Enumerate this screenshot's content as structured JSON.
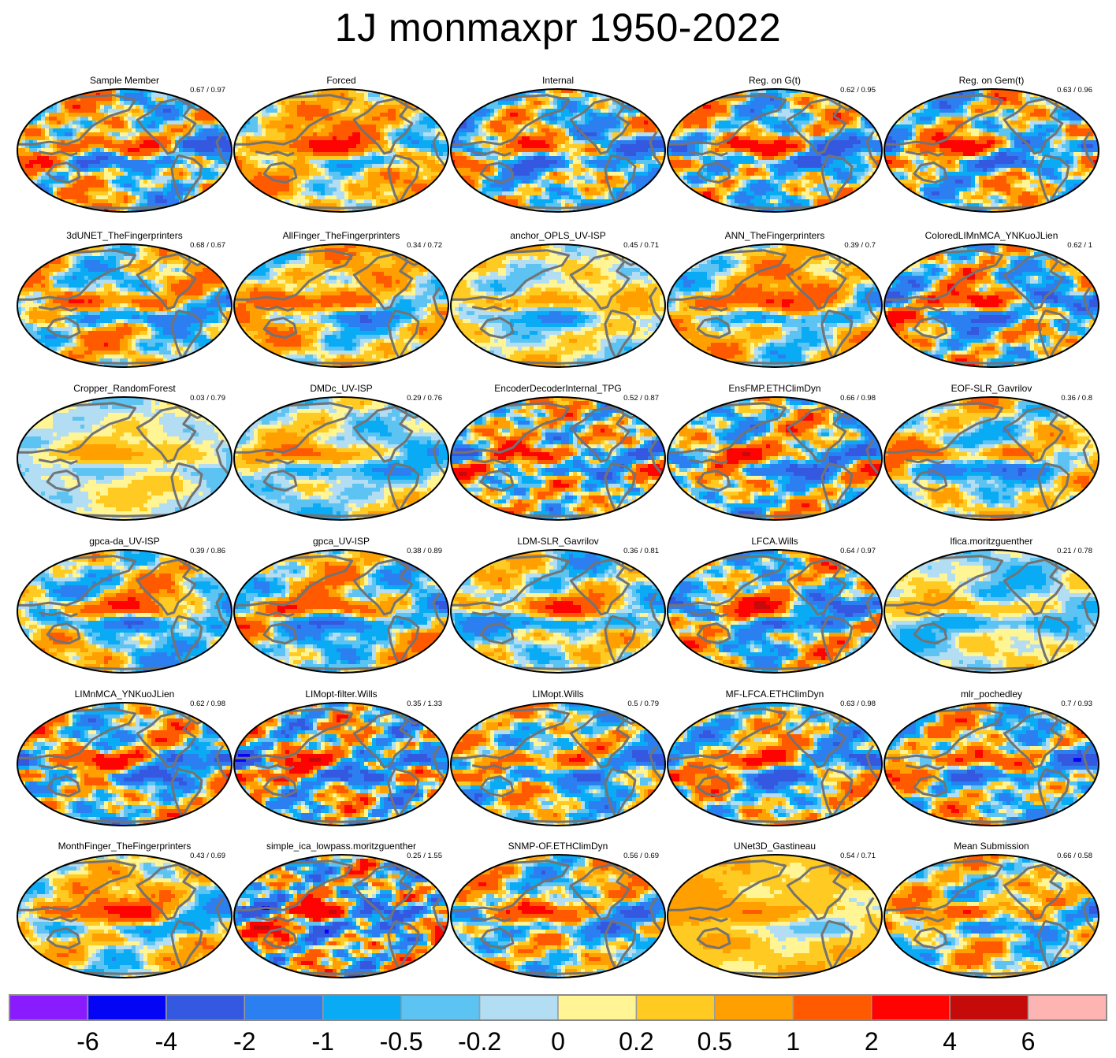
{
  "title": "1J monmaxpr 1950-2022",
  "chart_data": {
    "type": "heatmap",
    "title": "1J monmaxpr 1950-2022",
    "projection": "global ellipse map, continent outlines",
    "grid": false,
    "panels": [
      {
        "name": "Sample Member",
        "score": "0.67 / 0.97",
        "intensity": 0.9,
        "bias": 0.05,
        "wavelength": 1.0
      },
      {
        "name": "Forced",
        "score": "",
        "intensity": 0.55,
        "bias": 0.55,
        "wavelength": 1.3
      },
      {
        "name": "Internal",
        "score": "",
        "intensity": 0.9,
        "bias": -0.2,
        "wavelength": 1.0
      },
      {
        "name": "Reg. on G(t)",
        "score": "0.62 / 0.95",
        "intensity": 0.9,
        "bias": -0.05,
        "wavelength": 1.0
      },
      {
        "name": "Reg. on Gem(t)",
        "score": "0.63 / 0.96",
        "intensity": 0.9,
        "bias": 0.0,
        "wavelength": 1.0
      },
      {
        "name": "3dUNET_TheFingerprinters",
        "score": "0.68 / 0.67",
        "intensity": 0.7,
        "bias": 0.1,
        "wavelength": 1.3
      },
      {
        "name": "AllFinger_TheFingerprinters",
        "score": "0.34 / 0.72",
        "intensity": 0.55,
        "bias": 0.25,
        "wavelength": 1.5
      },
      {
        "name": "anchor_OPLS_UV-ISP",
        "score": "0.45 / 0.71",
        "intensity": 0.35,
        "bias": 0.05,
        "wavelength": 1.6
      },
      {
        "name": "ANN_TheFingerprinters",
        "score": "0.39 / 0.7",
        "intensity": 0.55,
        "bias": 0.35,
        "wavelength": 1.5
      },
      {
        "name": "ColoredLIMnMCA_YNKuoJLien",
        "score": "0.62 / 1",
        "intensity": 0.95,
        "bias": 0.0,
        "wavelength": 1.0
      },
      {
        "name": "Cropper_RandomForest",
        "score": "0.03 / 0.79",
        "intensity": 0.2,
        "bias": 0.05,
        "wavelength": 1.8
      },
      {
        "name": "DMDc_UV-ISP",
        "score": "0.29 / 0.76",
        "intensity": 0.35,
        "bias": -0.05,
        "wavelength": 1.6
      },
      {
        "name": "EncoderDecoderInternal_TPG",
        "score": "0.52 / 0.87",
        "intensity": 0.95,
        "bias": 0.2,
        "wavelength": 0.8
      },
      {
        "name": "EnsFMP.ETHClimDyn",
        "score": "0.66 / 0.98",
        "intensity": 0.95,
        "bias": 0.0,
        "wavelength": 1.0
      },
      {
        "name": "EOF-SLR_Gavrilov",
        "score": "0.36 / 0.8",
        "intensity": 0.6,
        "bias": 0.0,
        "wavelength": 1.6
      },
      {
        "name": "gpca-da_UV-ISP",
        "score": "0.39 / 0.86",
        "intensity": 0.7,
        "bias": 0.0,
        "wavelength": 1.4
      },
      {
        "name": "gpca_UV-ISP",
        "score": "0.38 / 0.89",
        "intensity": 0.7,
        "bias": 0.0,
        "wavelength": 1.4
      },
      {
        "name": "LDM-SLR_Gavrilov",
        "score": "0.36 / 0.81",
        "intensity": 0.6,
        "bias": 0.0,
        "wavelength": 1.6
      },
      {
        "name": "LFCA.Wills",
        "score": "0.64 / 0.97",
        "intensity": 0.9,
        "bias": 0.0,
        "wavelength": 1.0
      },
      {
        "name": "lfica.moritzguenther",
        "score": "0.21 / 0.78",
        "intensity": 0.3,
        "bias": -0.1,
        "wavelength": 1.6
      },
      {
        "name": "LIMnMCA_YNKuoJLien",
        "score": "0.62 / 0.98",
        "intensity": 0.95,
        "bias": 0.0,
        "wavelength": 1.0
      },
      {
        "name": "LIMopt-filter.Wills",
        "score": "0.35 / 1.33",
        "intensity": 1.1,
        "bias": 0.0,
        "wavelength": 0.8
      },
      {
        "name": "LIMopt.Wills",
        "score": "0.5 / 0.79",
        "intensity": 0.8,
        "bias": -0.05,
        "wavelength": 1.0
      },
      {
        "name": "MF-LFCA.ETHClimDyn",
        "score": "0.63 / 0.98",
        "intensity": 0.9,
        "bias": 0.0,
        "wavelength": 1.0
      },
      {
        "name": "mlr_pochedley",
        "score": "0.7 / 0.93",
        "intensity": 0.9,
        "bias": 0.0,
        "wavelength": 1.0
      },
      {
        "name": "MonthFinger_TheFingerprinters",
        "score": "0.43 / 0.69",
        "intensity": 0.55,
        "bias": 0.3,
        "wavelength": 1.5
      },
      {
        "name": "simple_ica_lowpass.moritzguenther",
        "score": "0.25 / 1.55",
        "intensity": 1.2,
        "bias": 0.0,
        "wavelength": 0.7
      },
      {
        "name": "SNMP-OF.ETHClimDyn",
        "score": "0.56 / 0.69",
        "intensity": 0.75,
        "bias": 0.1,
        "wavelength": 1.1
      },
      {
        "name": "UNet3D_Gastineau",
        "score": "0.54 / 0.71",
        "intensity": 0.2,
        "bias": 0.35,
        "wavelength": 1.8
      },
      {
        "name": "Mean Submission",
        "score": "0.66 / 0.58",
        "intensity": 0.65,
        "bias": 0.1,
        "wavelength": 1.1
      }
    ],
    "colorbar": {
      "colors": [
        "#8B1BFF",
        "#0505F5",
        "#3558E0",
        "#2C7FF0",
        "#0AABF5",
        "#5CC3F2",
        "#B3DDF3",
        "#FFF594",
        "#FFCA22",
        "#FF9F00",
        "#FF5A00",
        "#FF0202",
        "#C50A0A",
        "#FFB4B4"
      ],
      "tick_labels": [
        "-6",
        "-4",
        "-2",
        "-1",
        "-0.5",
        "-0.2",
        "0",
        "0.2",
        "0.5",
        "1",
        "2",
        "4",
        "6"
      ]
    }
  }
}
